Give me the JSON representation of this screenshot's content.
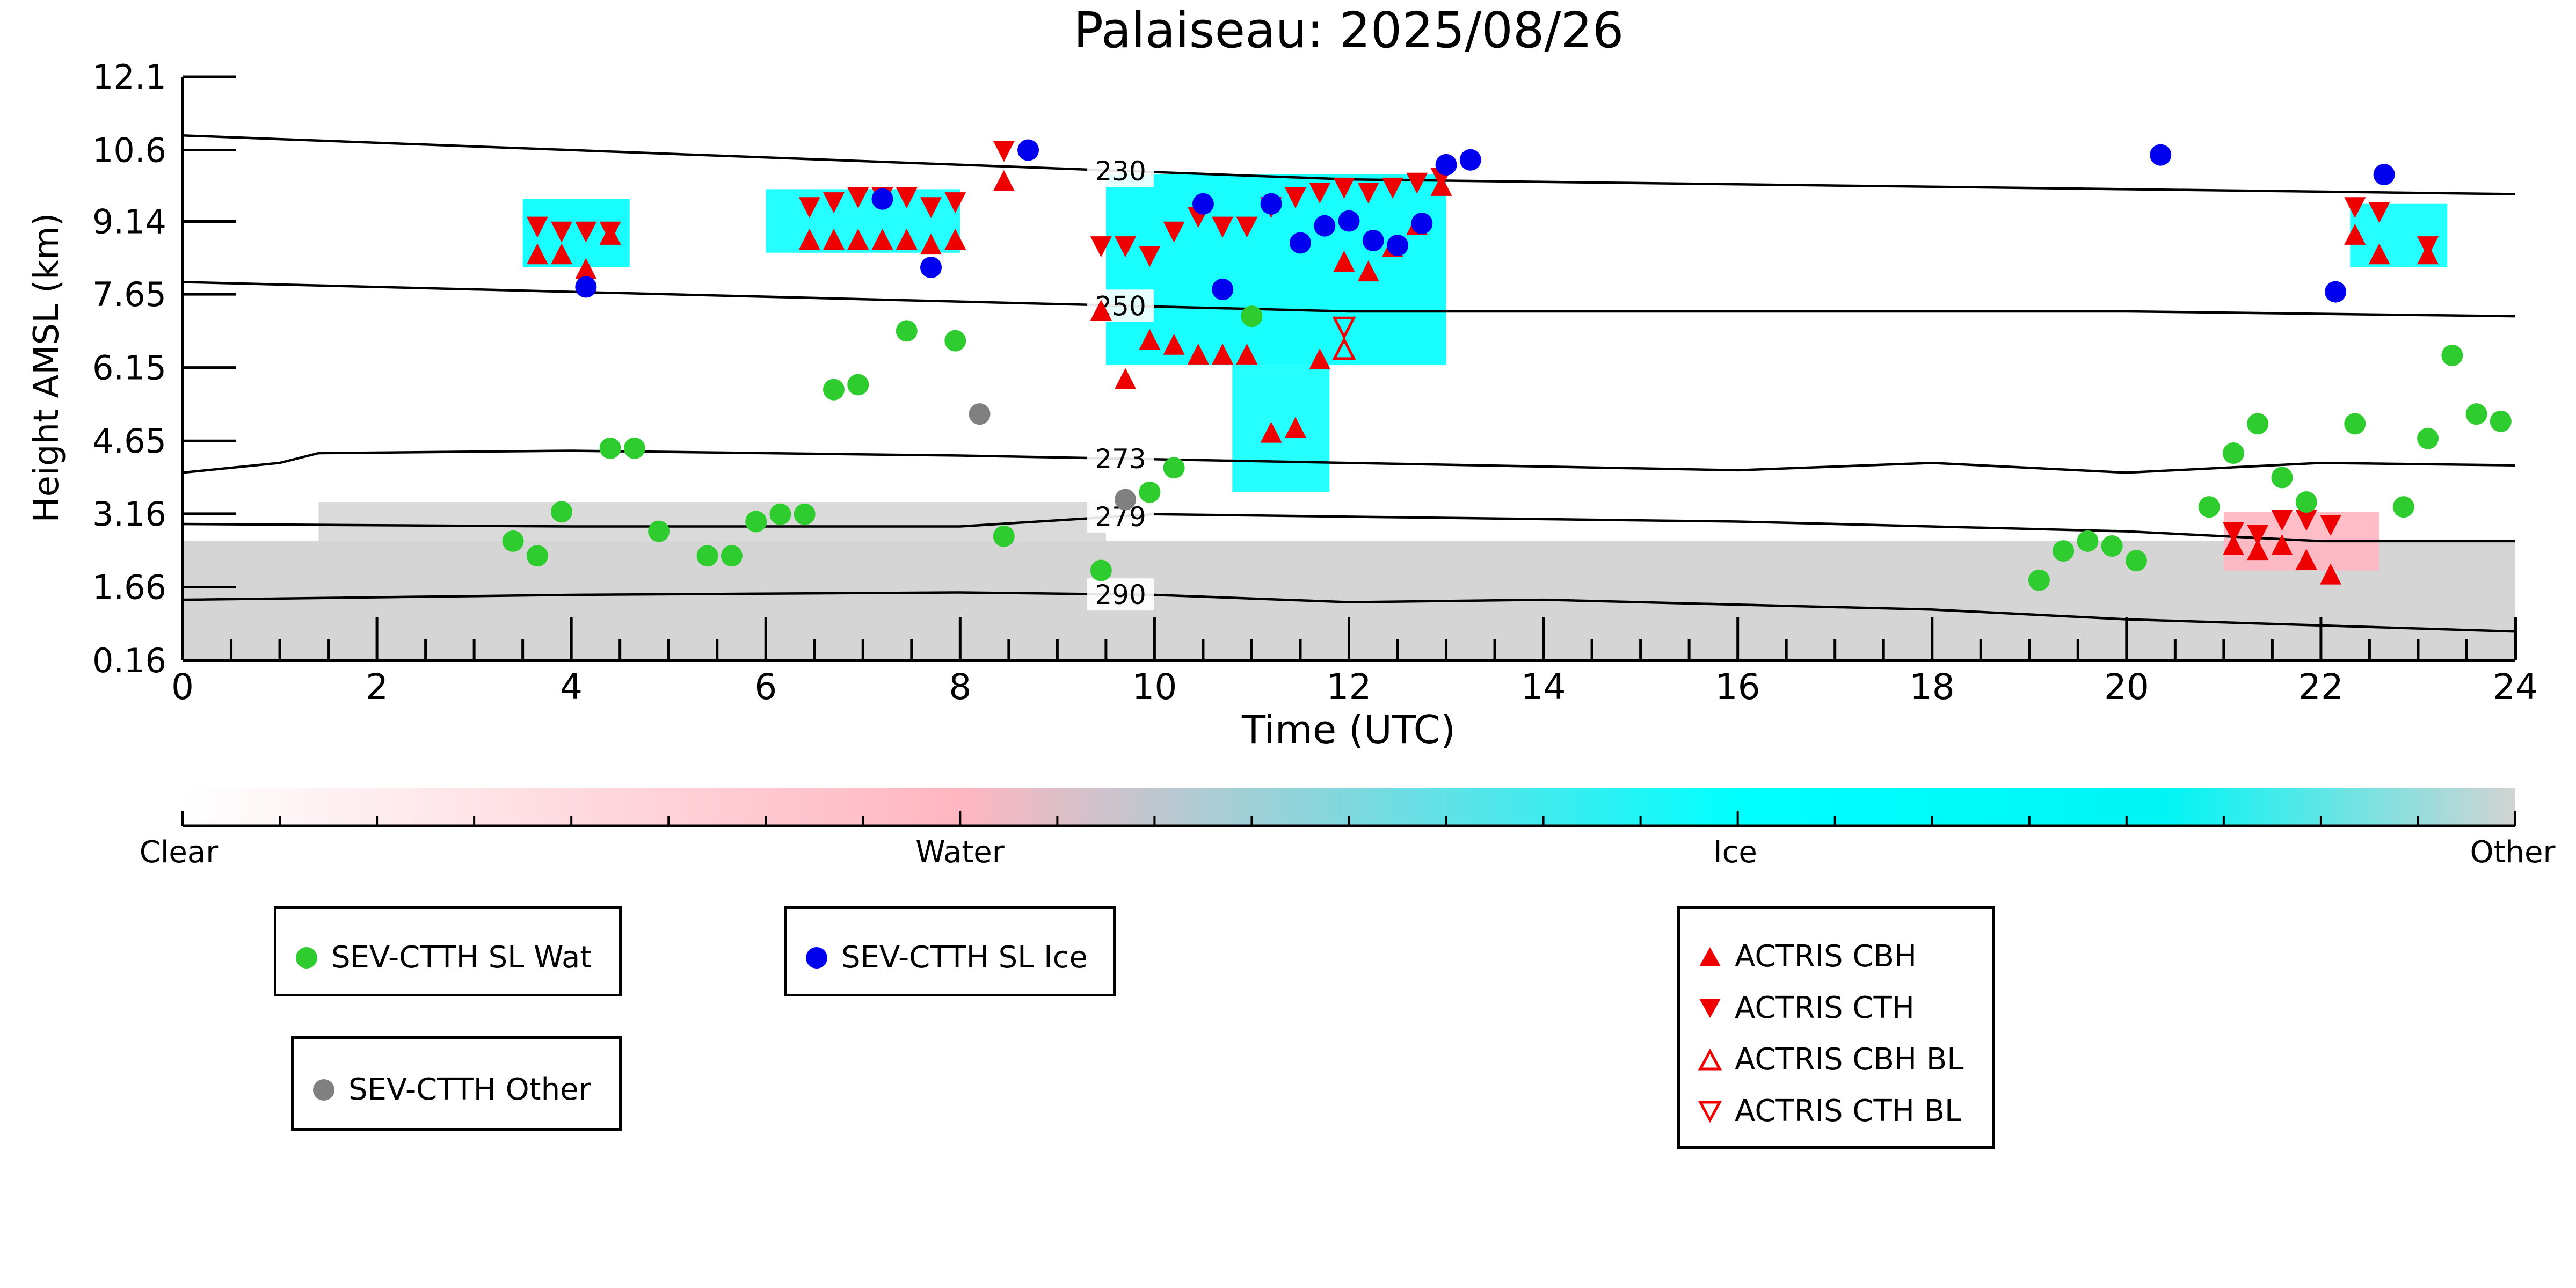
{
  "chart_data": {
    "type": "scatter",
    "title": "Palaiseau: 2025/08/26",
    "xlabel": "Time (UTC)",
    "ylabel": "Height AMSL (km)",
    "xlim": [
      0,
      24
    ],
    "ylim": [
      0.16,
      12.1
    ],
    "xticks": [
      0,
      2,
      4,
      6,
      8,
      10,
      12,
      14,
      16,
      18,
      20,
      22,
      24
    ],
    "yticks": [
      0.16,
      1.66,
      3.16,
      4.65,
      6.15,
      7.65,
      9.14,
      10.6,
      12.1
    ],
    "ytick_labels": [
      "0.16",
      "1.66",
      "3.16",
      "4.65",
      "6.15",
      "7.65",
      "9.14",
      "10.6",
      "12.1"
    ],
    "colorbar": {
      "labels": [
        "Clear",
        "Water",
        "Ice",
        "Other"
      ],
      "colors": [
        "#ffffff",
        "#ffb6c1",
        "#00ffff",
        "#d3d3d3"
      ]
    },
    "colors": {
      "sl_wat": "#2ecc2e",
      "sl_ice": "#0000ee",
      "other": "#808080",
      "actris": "#ee0000",
      "water_cloud": "#ffb6c1",
      "ice_cloud": "#00ffff",
      "other_cloud": "#d3d3d3"
    },
    "isotherms": [
      {
        "label": "230",
        "x": [
          0,
          4,
          8,
          12,
          16,
          20,
          24
        ],
        "y": [
          10.9,
          10.6,
          10.3,
          10.0,
          9.9,
          9.8,
          9.7
        ],
        "label_x": 9.65
      },
      {
        "label": "250",
        "x": [
          0,
          4,
          8,
          12,
          16,
          20,
          24
        ],
        "y": [
          7.9,
          7.7,
          7.5,
          7.3,
          7.3,
          7.3,
          7.2
        ],
        "label_x": 9.65
      },
      {
        "label": "273",
        "x": [
          0,
          1,
          1.4,
          4,
          8,
          12,
          16,
          18,
          20,
          22,
          24
        ],
        "y": [
          4.0,
          4.2,
          4.4,
          4.45,
          4.35,
          4.2,
          4.05,
          4.2,
          4.0,
          4.2,
          4.15
        ],
        "label_x": 9.65
      },
      {
        "label": "279",
        "x": [
          0,
          4,
          8,
          10,
          12,
          16,
          20,
          22,
          24
        ],
        "y": [
          2.95,
          2.9,
          2.9,
          3.15,
          3.1,
          3.0,
          2.8,
          2.6,
          2.6
        ],
        "label_x": 9.65
      },
      {
        "label": "290",
        "x": [
          0,
          4,
          8,
          10,
          12,
          14,
          18,
          20,
          24
        ],
        "y": [
          1.4,
          1.5,
          1.55,
          1.5,
          1.35,
          1.4,
          1.2,
          1.0,
          0.75
        ],
        "label_x": 9.65
      }
    ],
    "series": [
      {
        "name": "SEV-CTTH SL Wat",
        "marker": "circle",
        "x": [
          3.4,
          3.65,
          3.9,
          4.4,
          4.65,
          4.9,
          5.4,
          5.65,
          5.9,
          6.15,
          6.4,
          6.7,
          6.95,
          7.45,
          7.95,
          8.45,
          9.45,
          9.95,
          10.2,
          11.0,
          19.1,
          19.35,
          19.6,
          19.85,
          20.1,
          20.85,
          21.1,
          21.35,
          21.6,
          21.85,
          22.35,
          22.85,
          23.1,
          23.35,
          23.6,
          23.85
        ],
        "y": [
          2.6,
          2.3,
          3.2,
          4.5,
          4.5,
          2.8,
          2.3,
          2.3,
          3.0,
          3.15,
          3.15,
          5.7,
          5.8,
          6.9,
          6.7,
          2.7,
          2.0,
          3.6,
          4.1,
          7.2,
          1.8,
          2.4,
          2.6,
          2.5,
          2.2,
          3.3,
          4.4,
          5.0,
          3.9,
          3.4,
          5.0,
          3.3,
          4.7,
          6.4,
          5.2,
          5.05
        ]
      },
      {
        "name": "SEV-CTTH SL Ice",
        "marker": "circle",
        "x": [
          4.15,
          7.2,
          7.7,
          8.7,
          10.5,
          10.7,
          11.2,
          11.5,
          11.75,
          12.0,
          12.25,
          12.5,
          12.75,
          13.0,
          13.25,
          20.35,
          22.15,
          22.65
        ],
        "y": [
          7.8,
          9.6,
          8.2,
          10.6,
          9.5,
          7.75,
          9.5,
          8.7,
          9.05,
          9.15,
          8.75,
          8.65,
          9.1,
          10.3,
          10.4,
          10.5,
          7.7,
          10.1
        ]
      },
      {
        "name": "SEV-CTTH Other",
        "marker": "circle",
        "x": [
          8.2,
          9.7
        ],
        "y": [
          5.2,
          3.45
        ]
      },
      {
        "name": "ACTRIS CBH",
        "marker": "triangle-up",
        "x": [
          3.65,
          3.9,
          4.15,
          4.4,
          6.45,
          6.7,
          6.95,
          7.2,
          7.45,
          7.7,
          7.95,
          8.45,
          9.45,
          9.7,
          9.95,
          10.2,
          10.45,
          10.7,
          10.95,
          11.2,
          11.45,
          11.7,
          11.95,
          12.2,
          12.45,
          12.7,
          12.95,
          21.1,
          21.35,
          21.6,
          21.85,
          22.1,
          22.35,
          22.6,
          23.1
        ],
        "y": [
          8.45,
          8.45,
          8.15,
          8.85,
          8.75,
          8.75,
          8.75,
          8.75,
          8.75,
          8.65,
          8.75,
          9.95,
          7.3,
          5.9,
          6.7,
          6.6,
          6.4,
          6.4,
          6.4,
          4.8,
          4.9,
          6.3,
          8.3,
          8.1,
          8.6,
          9.05,
          9.85,
          2.5,
          2.4,
          2.5,
          2.2,
          1.9,
          8.85,
          8.45,
          8.45
        ]
      },
      {
        "name": "ACTRIS CTH",
        "marker": "triangle-down",
        "x": [
          3.65,
          3.9,
          4.15,
          4.4,
          6.45,
          6.7,
          6.95,
          7.2,
          7.45,
          7.7,
          7.95,
          8.45,
          9.45,
          9.7,
          9.95,
          10.2,
          10.45,
          10.7,
          10.95,
          11.2,
          11.45,
          11.7,
          11.95,
          12.2,
          12.45,
          12.7,
          12.95,
          21.1,
          21.35,
          21.6,
          21.85,
          22.1,
          22.35,
          22.6,
          23.1
        ],
        "y": [
          9.05,
          8.95,
          8.95,
          8.95,
          9.45,
          9.55,
          9.65,
          9.65,
          9.65,
          9.45,
          9.55,
          10.6,
          8.65,
          8.65,
          8.45,
          8.95,
          9.25,
          9.05,
          9.05,
          9.45,
          9.65,
          9.75,
          9.85,
          9.75,
          9.85,
          9.95,
          10.05,
          2.8,
          2.75,
          3.05,
          3.05,
          2.95,
          9.45,
          9.35,
          8.65
        ]
      },
      {
        "name": "ACTRIS CBH BL",
        "marker": "triangle-up-open",
        "x": [
          11.95
        ],
        "y": [
          6.5
        ]
      },
      {
        "name": "ACTRIS CTH BL",
        "marker": "triangle-down-open",
        "x": [
          11.95
        ],
        "y": [
          7.0
        ]
      }
    ]
  }
}
